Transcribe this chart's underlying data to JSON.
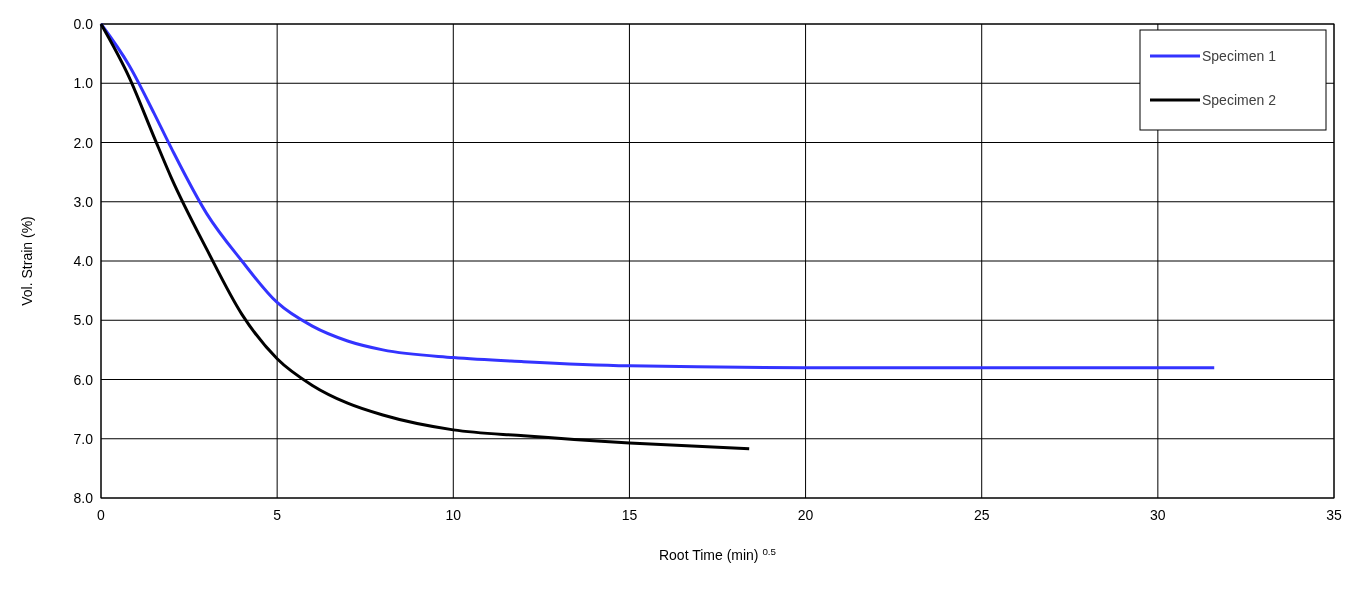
{
  "chart_data": {
    "type": "line",
    "xlabel": "Root Time (min) $^{0.5}$",
    "ylabel": "Vol. Strain (%)",
    "xlim": [
      0,
      35
    ],
    "xticks": [
      0,
      5,
      10,
      15,
      20,
      25,
      30,
      35
    ],
    "ylim": [
      8,
      0
    ],
    "yticks": [
      {
        "value": 0,
        "label": "0.0"
      },
      {
        "value": 1,
        "label": "1.0"
      },
      {
        "value": 2,
        "label": "2.0"
      },
      {
        "value": 3,
        "label": "3.0"
      },
      {
        "value": 4,
        "label": "4.0"
      },
      {
        "value": 5,
        "label": "5.0"
      },
      {
        "value": 6,
        "label": "6.0"
      },
      {
        "value": 7,
        "label": "7.0"
      },
      {
        "value": 8,
        "label": "8.0"
      }
    ],
    "grid": true,
    "legend": "top right",
    "marker": "none",
    "line_style": "solid",
    "series": [
      {
        "name": "Specimen 1",
        "color": "#3333ff",
        "x": [
          0,
          0.8,
          1.5,
          2,
          3,
          4,
          5,
          6,
          7,
          8,
          10,
          12,
          15,
          20,
          25,
          31.6
        ],
        "values": [
          0,
          0.7,
          1.5,
          2.1,
          3.2,
          4.0,
          4.7,
          5.1,
          5.35,
          5.5,
          5.63,
          5.7,
          5.77,
          5.8,
          5.8,
          5.8
        ]
      },
      {
        "name": "Specimen 2",
        "color": "#000000",
        "x": [
          0,
          0.8,
          1.5,
          2,
          3,
          4,
          5,
          6,
          7,
          8,
          10,
          12,
          15,
          18.4
        ],
        "values": [
          0,
          0.9,
          1.9,
          2.6,
          3.8,
          4.9,
          5.65,
          6.1,
          6.4,
          6.6,
          6.85,
          6.95,
          7.07,
          7.17
        ]
      }
    ]
  }
}
